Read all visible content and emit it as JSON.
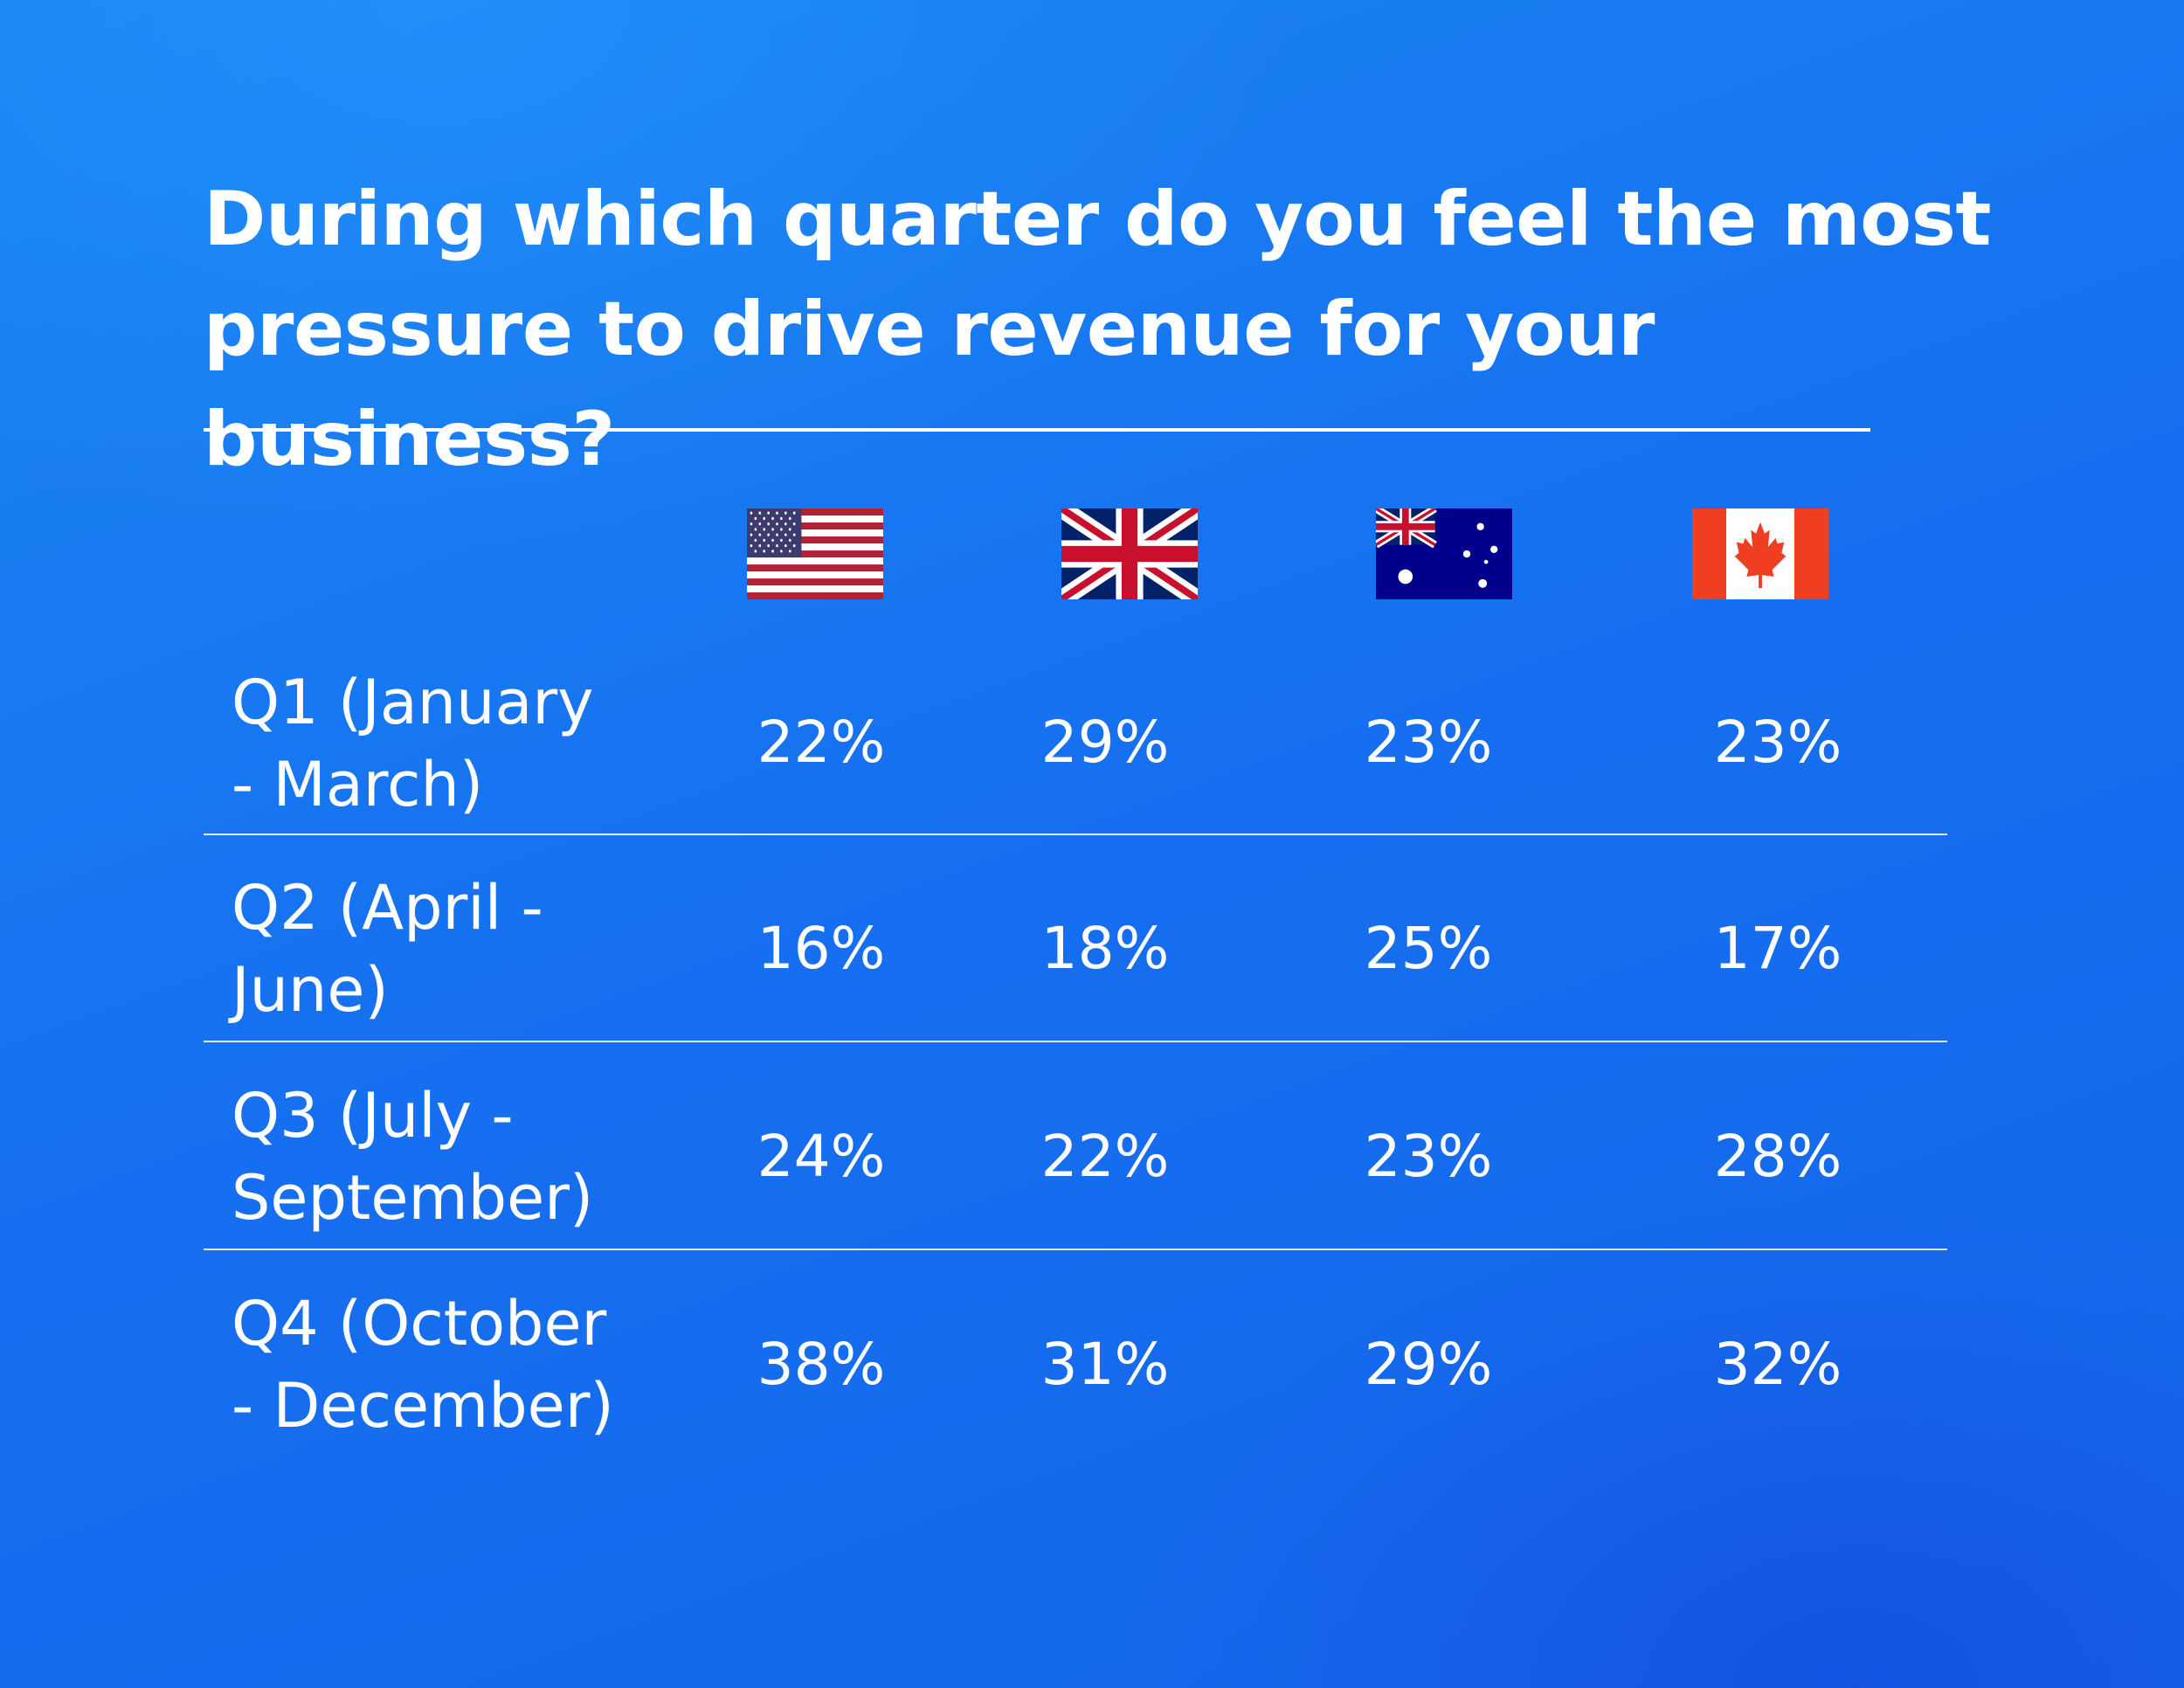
{
  "chart_data": {
    "type": "table",
    "title": "During which quarter do you feel the most pressure to drive revenue for your business?",
    "columns": [
      {
        "country": "United States",
        "icon": "us-flag-icon"
      },
      {
        "country": "United Kingdom",
        "icon": "uk-flag-icon"
      },
      {
        "country": "Australia",
        "icon": "australia-flag-icon"
      },
      {
        "country": "Canada",
        "icon": "canada-flag-icon"
      }
    ],
    "rows": [
      {
        "label": "Q1 (January\n- March)",
        "values": [
          "22%",
          "29%",
          "23%",
          "23%"
        ]
      },
      {
        "label": "Q2 (April -\nJune)",
        "values": [
          "16%",
          "18%",
          "25%",
          "17%"
        ]
      },
      {
        "label": "Q3 (July -\nSeptember)",
        "values": [
          "24%",
          "22%",
          "23%",
          "28%"
        ]
      },
      {
        "label": "Q4 (October\n- December)",
        "values": [
          "38%",
          "31%",
          "29%",
          "32%"
        ]
      }
    ]
  },
  "colors": {
    "background": "#166ff0",
    "text": "#ffffff"
  }
}
